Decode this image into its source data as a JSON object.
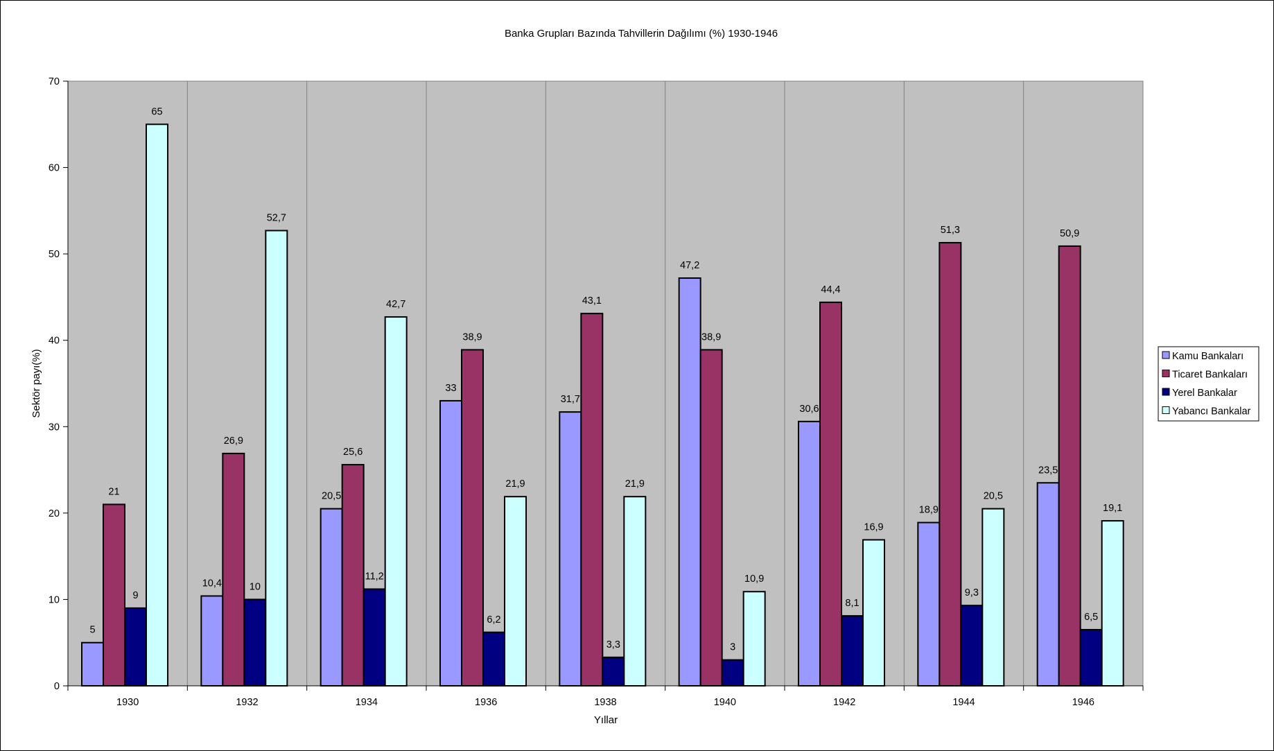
{
  "chart_data": {
    "type": "bar",
    "title": "Banka Grupları Bazında Tahvillerin Dağılımı (%) 1930-1946",
    "xlabel": "Yıllar",
    "ylabel": "Sektör payı(%)",
    "ylim": [
      0,
      70
    ],
    "yticks": [
      0,
      10,
      20,
      30,
      40,
      50,
      60,
      70
    ],
    "grid": false,
    "plot_background": "#C0C0C0",
    "legend_position": "right",
    "categories": [
      "1930",
      "1932",
      "1934",
      "1936",
      "1938",
      "1940",
      "1942",
      "1944",
      "1946"
    ],
    "series": [
      {
        "name": "Kamu Bankaları",
        "color": "#9999FF",
        "values": [
          5,
          10.4,
          20.5,
          33,
          31.7,
          47.2,
          30.6,
          18.9,
          23.5
        ],
        "labels": [
          "5",
          "10,4",
          "20,5",
          "33",
          "31,7",
          "47,2",
          "30,6",
          "18,9",
          "23,5"
        ]
      },
      {
        "name": "Ticaret Bankaları",
        "color": "#993366",
        "values": [
          21,
          26.9,
          25.6,
          38.9,
          43.1,
          38.9,
          44.4,
          51.3,
          50.9
        ],
        "labels": [
          "21",
          "26,9",
          "25,6",
          "38,9",
          "43,1",
          "38,9",
          "44,4",
          "51,3",
          "50,9"
        ]
      },
      {
        "name": "Yerel Bankalar",
        "color": "#000080",
        "values": [
          9,
          10,
          11.2,
          6.2,
          3.3,
          3,
          8.1,
          9.3,
          6.5
        ],
        "labels": [
          "9",
          "10",
          "11,2",
          "6,2",
          "3,3",
          "3",
          "8,1",
          "9,3",
          "6,5"
        ]
      },
      {
        "name": "Yabancı Bankalar",
        "color": "#CCFFFF",
        "values": [
          65,
          52.7,
          42.7,
          21.9,
          21.9,
          10.9,
          16.9,
          20.5,
          19.1
        ],
        "labels": [
          "65",
          "52,7",
          "42,7",
          "21,9",
          "21,9",
          "10,9",
          "16,9",
          "20,5",
          "19,1"
        ]
      }
    ]
  }
}
